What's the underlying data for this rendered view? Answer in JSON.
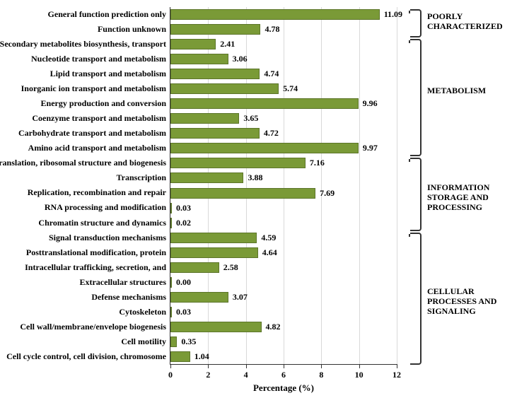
{
  "chart": {
    "type": "bar-horizontal",
    "background_color": "#ffffff",
    "bar_color": "#7a9a37",
    "bar_border_color": "#5c752a",
    "grid_color": "#d9d9d9",
    "axis_color": "#333333",
    "font_family": "Times New Roman",
    "label_fontsize": 12,
    "label_fontweight": "bold",
    "x_axis": {
      "title": "Percentage (%)",
      "min": 0,
      "max": 12,
      "tick_step": 2,
      "ticks": [
        0,
        2,
        4,
        6,
        8,
        10,
        12
      ]
    },
    "categories": [
      {
        "label": "General function prediction only",
        "value": 11.09
      },
      {
        "label": "Function unknown",
        "value": 4.78
      },
      {
        "label": "Secondary metabolites biosynthesis, transport",
        "value": 2.41
      },
      {
        "label": "Nucleotide transport and metabolism",
        "value": 3.06
      },
      {
        "label": "Lipid transport and metabolism",
        "value": 4.74
      },
      {
        "label": "Inorganic ion transport and metabolism",
        "value": 5.74
      },
      {
        "label": "Energy production and conversion",
        "value": 9.96
      },
      {
        "label": "Coenzyme transport and metabolism",
        "value": 3.65
      },
      {
        "label": "Carbohydrate transport and metabolism",
        "value": 4.72
      },
      {
        "label": "Amino acid transport and metabolism",
        "value": 9.97
      },
      {
        "label": "Translation, ribosomal structure and biogenesis",
        "value": 7.16
      },
      {
        "label": "Transcription",
        "value": 3.88
      },
      {
        "label": "Replication, recombination and repair",
        "value": 7.69
      },
      {
        "label": "RNA processing and modification",
        "value": 0.03
      },
      {
        "label": "Chromatin structure and dynamics",
        "value": 0.02
      },
      {
        "label": "Signal transduction mechanisms",
        "value": 4.59
      },
      {
        "label": "Posttranslational modification, protein",
        "value": 4.64
      },
      {
        "label": "Intracellular trafficking, secretion, and",
        "value": 2.58
      },
      {
        "label": "Extracellular structures",
        "value": 0.0
      },
      {
        "label": "Defense mechanisms",
        "value": 3.07
      },
      {
        "label": "Cytoskeleton",
        "value": 0.03
      },
      {
        "label": "Cell wall/membrane/envelope biogenesis",
        "value": 4.82
      },
      {
        "label": "Cell motility",
        "value": 0.35
      },
      {
        "label": "Cell cycle control, cell division, chromosome",
        "value": 1.04
      }
    ],
    "groups": [
      {
        "label": "POORLY CHARACTERIZED",
        "start": 0,
        "end": 1
      },
      {
        "label": "METABOLISM",
        "start": 2,
        "end": 9
      },
      {
        "label": "INFORMATION STORAGE AND PROCESSING",
        "start": 10,
        "end": 14
      },
      {
        "label": "CELLULAR PROCESSES AND SIGNALING",
        "start": 15,
        "end": 23
      }
    ]
  }
}
